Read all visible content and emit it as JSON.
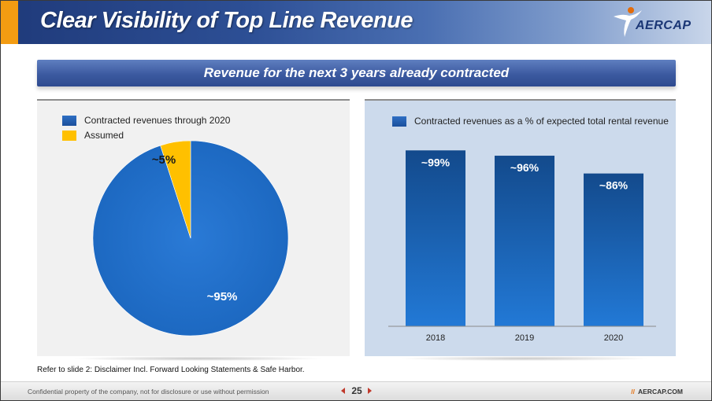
{
  "header": {
    "title": "Clear Visibility of Top Line Revenue",
    "logo_text": "AERCAP",
    "logo_icon": "aercap-figure-icon"
  },
  "banner": {
    "text": "Revenue for the next 3 years already contracted"
  },
  "colors": {
    "blue": "#1f6fc8",
    "gold": "#ffc000",
    "header": "#2d4f95",
    "right_panel": "#ccdaec"
  },
  "chart_data": [
    {
      "type": "pie",
      "legend": [
        "Contracted revenues through 2020",
        "Assumed"
      ],
      "labels": [
        "Contracted revenues through 2020",
        "Assumed"
      ],
      "values": [
        95,
        5
      ],
      "data_labels": [
        "~95%",
        "~5%"
      ],
      "legend_placement": "top-left"
    },
    {
      "type": "bar",
      "legend": [
        "Contracted revenues as a % of expected total rental revenue"
      ],
      "categories": [
        "2018",
        "2019",
        "2020"
      ],
      "values": [
        99,
        96,
        86
      ],
      "data_labels": [
        "~99%",
        "~96%",
        "~86%"
      ],
      "ylim": [
        0,
        100
      ],
      "grid": false,
      "legend_placement": "top"
    }
  ],
  "footnote": "Refer to slide 2: Disclaimer Incl. Forward Looking Statements & Safe Harbor.",
  "footer": {
    "confidential": "Confidential property of the company, not for disclosure or use without permission",
    "page": "25",
    "slashes": "//",
    "url": "AERCAP.COM"
  }
}
